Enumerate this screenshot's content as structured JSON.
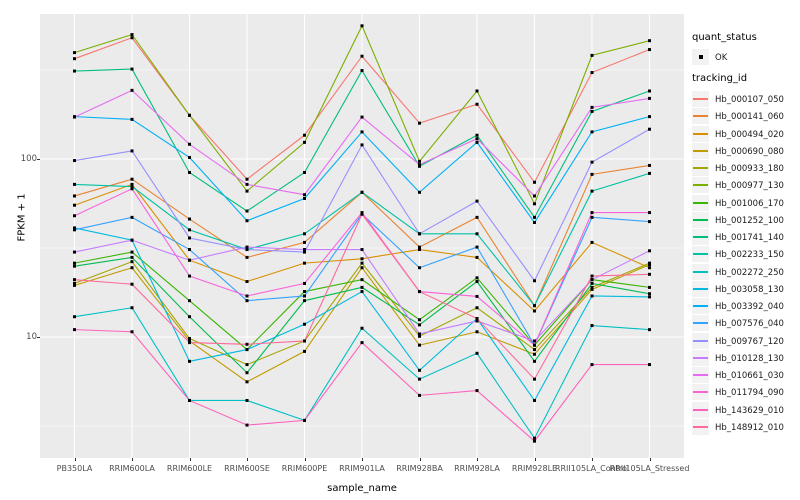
{
  "chart_data": {
    "type": "line",
    "xlabel": "sample_name",
    "ylabel": "FPKM + 1",
    "y_scale": "log10",
    "y_ticks": [
      10,
      100
    ],
    "y_minor_gridlines": [
      3.162,
      31.62,
      316.2
    ],
    "ylim_log": [
      2.1,
      653
    ],
    "grid": "on",
    "panel_bg": "#EBEBEB",
    "gridline_color": "#FFFFFF",
    "point_color": "#000000",
    "legend_position": "right",
    "categories": [
      "PB350LA",
      "RRIM600LA",
      "RRIM600LE",
      "RRIM600SE",
      "RRIM600PE",
      "RRIM901LA",
      "RRIM928BA",
      "RRIM928LA",
      "RRIM928LE",
      "RRII105LA_Control",
      "RRII105LA_Stressed"
    ],
    "series": [
      {
        "name": "Hb_000107_050",
        "color": "#F8766D",
        "values": [
          366,
          480,
          176,
          77,
          136,
          378,
          159,
          203,
          74,
          306,
          412
        ]
      },
      {
        "name": "Hb_000141_060",
        "color": "#EA8331",
        "values": [
          62,
          77,
          46,
          28,
          34,
          65,
          32,
          47,
          15,
          82,
          92
        ]
      },
      {
        "name": "Hb_000494_020",
        "color": "#D89000",
        "values": [
          55,
          72,
          27,
          20.5,
          26,
          27.5,
          31,
          28,
          14,
          34,
          24.5
        ]
      },
      {
        "name": "Hb_000690_080",
        "color": "#C09B00",
        "values": [
          19.5,
          24.5,
          9.5,
          5.6,
          8.3,
          24.5,
          9,
          10.7,
          8,
          18.5,
          25.5
        ]
      },
      {
        "name": "Hb_000933_180",
        "color": "#A3A500",
        "values": [
          20,
          26.5,
          9.8,
          7,
          9.5,
          26,
          10.1,
          14.6,
          8.5,
          19,
          26
        ]
      },
      {
        "name": "Hb_000977_130",
        "color": "#7CAE00",
        "values": [
          396,
          500,
          176,
          66,
          124,
          560,
          97,
          241,
          56,
          382,
          462
        ]
      },
      {
        "name": "Hb_001006_170",
        "color": "#39B600",
        "values": [
          26,
          30,
          16,
          8.5,
          18,
          21,
          12.5,
          21.5,
          9,
          21,
          19
        ]
      },
      {
        "name": "Hb_001252_100",
        "color": "#00BB4E",
        "values": [
          25,
          28,
          13,
          6.3,
          16,
          19,
          11.7,
          20.5,
          7.3,
          20,
          17.5
        ]
      },
      {
        "name": "Hb_001741_140",
        "color": "#00BF7D",
        "values": [
          312,
          320,
          84,
          51,
          84,
          314,
          91,
          136,
          47,
          185,
          241
        ]
      },
      {
        "name": "Hb_002233_150",
        "color": "#00C1A3",
        "values": [
          72,
          70,
          40,
          31,
          38,
          65,
          38,
          38,
          15,
          66,
          83
        ]
      },
      {
        "name": "Hb_002272_250",
        "color": "#00BFC4",
        "values": [
          13,
          14.6,
          4.4,
          4.4,
          3.4,
          11.2,
          5.8,
          8.1,
          2.7,
          11.6,
          11
        ]
      },
      {
        "name": "Hb_003058_130",
        "color": "#00BAE0",
        "values": [
          41,
          35,
          7.3,
          8.5,
          11.8,
          18,
          6.5,
          12.7,
          4.4,
          17,
          16.8
        ]
      },
      {
        "name": "Hb_003392_040",
        "color": "#00B0F6",
        "values": [
          173,
          167,
          102,
          45,
          60,
          142,
          65,
          124,
          44,
          142,
          173
        ]
      },
      {
        "name": "Hb_007576_040",
        "color": "#35A2FF",
        "values": [
          40,
          47,
          31,
          16,
          17,
          49,
          24.5,
          32,
          9,
          47,
          44.5
        ]
      },
      {
        "name": "Hb_009767_120",
        "color": "#9590FF",
        "values": [
          98,
          111,
          36,
          31,
          30,
          120,
          38,
          58,
          20.7,
          96,
          147
        ]
      },
      {
        "name": "Hb_010128_130",
        "color": "#C77CFF",
        "values": [
          30,
          35,
          27,
          32,
          31,
          31,
          10.4,
          12.3,
          9.5,
          21,
          30.5
        ]
      },
      {
        "name": "Hb_010661_030",
        "color": "#E76BF3",
        "values": [
          172,
          243,
          121,
          72,
          63,
          172,
          93,
          130,
          62,
          195,
          219
        ]
      },
      {
        "name": "Hb_011794_090",
        "color": "#FA62DB",
        "values": [
          48,
          68,
          22,
          17,
          20,
          50,
          18,
          16.9,
          9,
          50,
          50
        ]
      },
      {
        "name": "Hb_143629_010",
        "color": "#FF62BC",
        "values": [
          11,
          10.7,
          4.4,
          3.2,
          3.4,
          9.3,
          4.7,
          5,
          2.6,
          7,
          7
        ]
      },
      {
        "name": "Hb_148912_010",
        "color": "#FF6A98",
        "values": [
          21,
          19.8,
          9.3,
          9.1,
          9.5,
          49,
          18,
          12.7,
          5.8,
          22,
          22.5
        ]
      }
    ]
  },
  "legend": {
    "quant_status_title": "quant_status",
    "quant_status_items": [
      "OK"
    ],
    "tracking_title": "tracking_id"
  }
}
